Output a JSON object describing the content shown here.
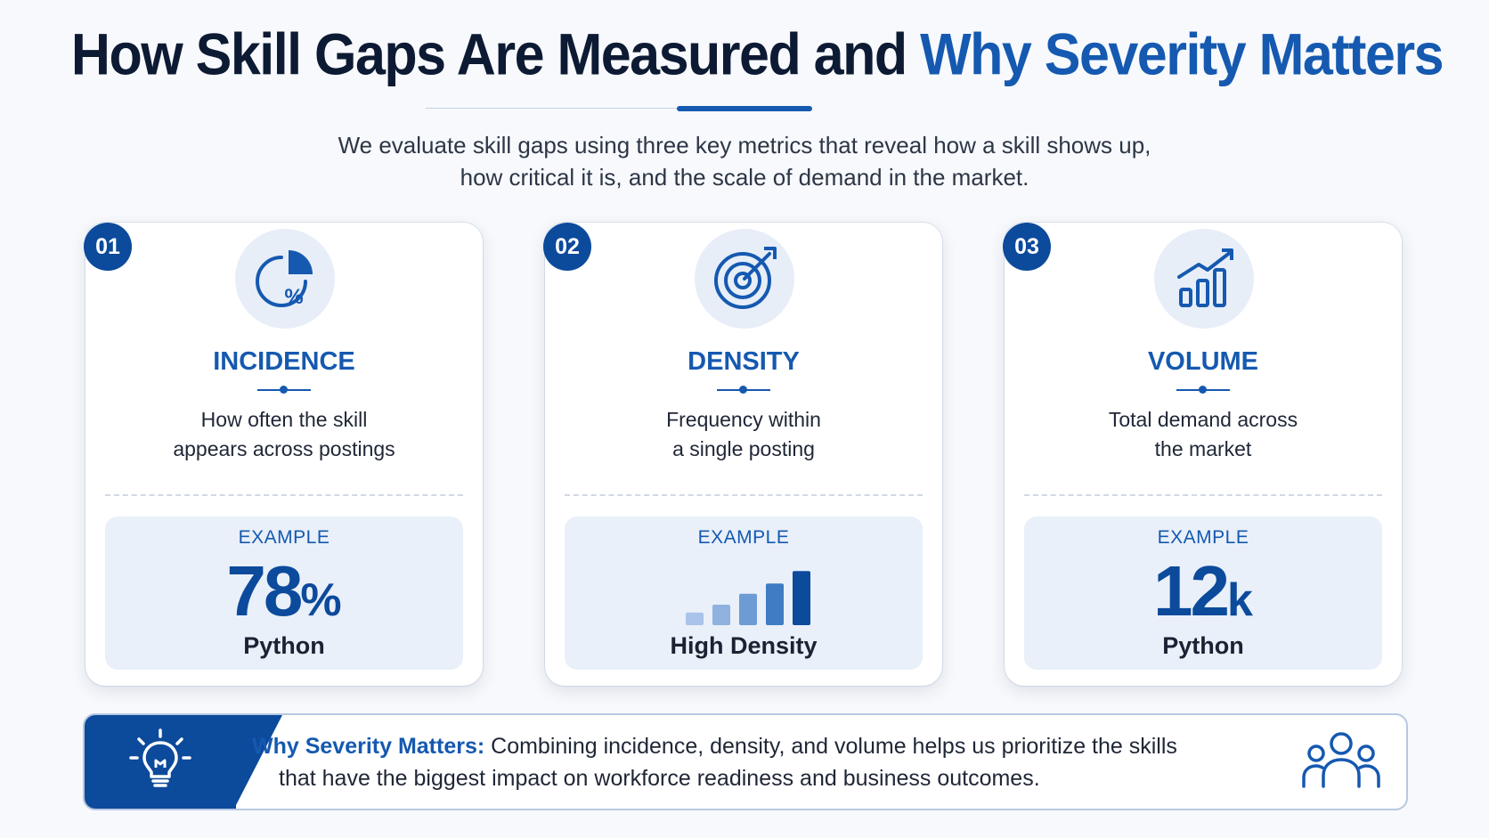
{
  "header": {
    "title_main": "How Skill Gaps Are Measured and ",
    "title_accent": "Why Severity Matters",
    "intro_line1": "We evaluate skill gaps using three key metrics that reveal how a skill shows up,",
    "intro_line2": "how critical it is, and the scale of demand in the market."
  },
  "cards": [
    {
      "number": "01",
      "icon": "pie-percent-icon",
      "title": "INCIDENCE",
      "desc_line1": "How often the skill",
      "desc_line2": "appears across postings",
      "example_label": "EXAMPLE",
      "example_value": "78",
      "example_unit": "%",
      "example_caption": "Python"
    },
    {
      "number": "02",
      "icon": "target-icon",
      "title": "DENSITY",
      "desc_line1": "Frequency within",
      "desc_line2": "a single posting",
      "example_label": "EXAMPLE",
      "example_caption": "High Density",
      "bar_levels": [
        0.22,
        0.36,
        0.55,
        0.73,
        0.95
      ]
    },
    {
      "number": "03",
      "icon": "growth-chart-icon",
      "title": "VOLUME",
      "desc_line1": "Total demand across",
      "desc_line2": "the market",
      "example_label": "EXAMPLE",
      "example_value": "12",
      "example_unit": "k",
      "example_caption": "Python"
    }
  ],
  "banner": {
    "lead": "Why Severity Matters:",
    "text_line1": " Combining incidence, density, and volume helps us prioritize the skills",
    "text_line2": "that have the biggest impact on workforce readiness and business outcomes.",
    "left_icon": "lightbulb-icon",
    "right_icon": "people-group-icon"
  },
  "colors": {
    "accent": "#1559b0",
    "navy": "#0c4a9b",
    "heading": "#0d1a33",
    "panel": "#e9f0f9",
    "icon_bg": "#e7eef8"
  }
}
